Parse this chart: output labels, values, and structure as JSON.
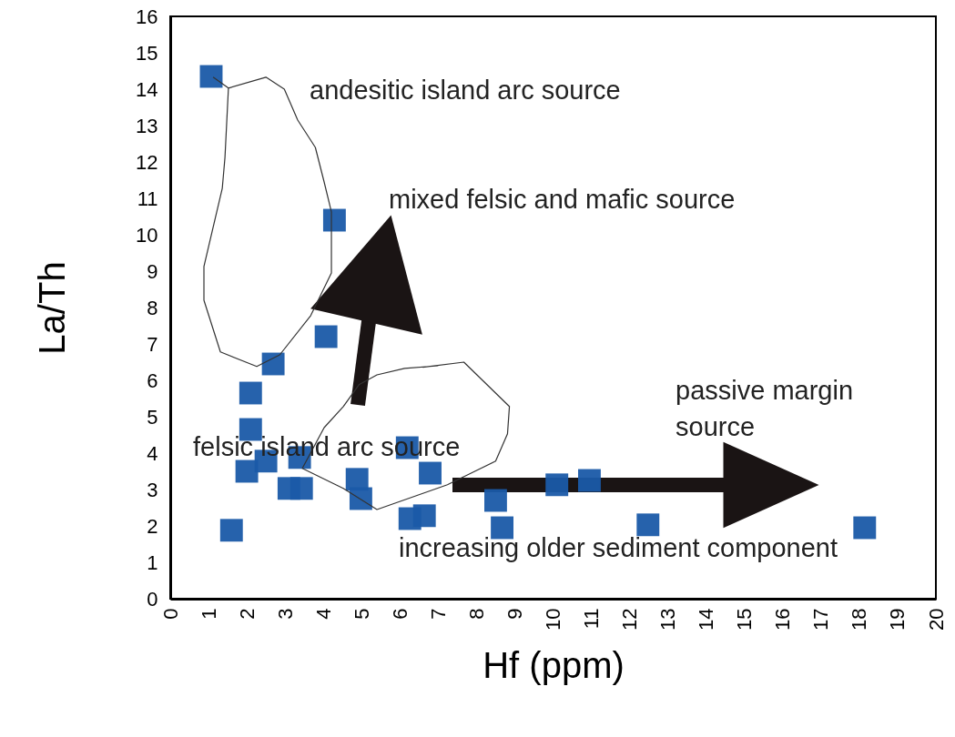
{
  "chart_data": {
    "type": "scatter",
    "xlabel": "Hf (ppm)",
    "ylabel": "La/Th",
    "xlim": [
      0,
      20
    ],
    "xticks": [
      0,
      1,
      2,
      3,
      4,
      5,
      6,
      7,
      8,
      9,
      10,
      11,
      12,
      13,
      14,
      15,
      16,
      17,
      18,
      19,
      20
    ],
    "ylim": [
      0,
      16
    ],
    "yticks": [
      0,
      1,
      2,
      3,
      4,
      5,
      6,
      7,
      8,
      9,
      10,
      11,
      12,
      13,
      14,
      15,
      16
    ],
    "grid": false,
    "series": [
      {
        "marker": "square",
        "color": "#1a5aa8",
        "x": [
          1.07,
          4.29,
          4.07,
          2.69,
          2.1,
          2.1,
          2.0,
          2.5,
          3.38,
          3.1,
          3.43,
          4.88,
          4.98,
          6.19,
          6.79,
          6.26,
          6.64,
          8.5,
          8.67,
          1.6,
          10.1,
          10.95,
          12.48,
          18.14
        ],
        "values": [
          14.35,
          10.4,
          7.2,
          6.45,
          5.65,
          4.65,
          3.5,
          3.78,
          3.88,
          3.03,
          3.03,
          3.28,
          2.75,
          4.15,
          3.45,
          2.2,
          2.28,
          2.7,
          1.95,
          1.88,
          3.13,
          3.25,
          2.03,
          1.95
        ]
      },
      {
        "type": "line",
        "color": "#333333",
        "x": [
          1.12,
          1.52,
          2.5,
          2.98,
          3.33,
          3.79,
          4.02,
          4.21,
          4.21,
          3.67,
          2.86,
          2.26,
          1.31,
          0.88,
          0.88,
          1.36,
          1.43,
          1.52
        ],
        "values": [
          14.33,
          14.03,
          14.33,
          14.0,
          13.15,
          12.4,
          11.45,
          10.63,
          8.95,
          7.78,
          6.7,
          6.38,
          6.78,
          8.2,
          9.13,
          11.28,
          12.13,
          14.03
        ]
      },
      {
        "type": "line",
        "color": "#333333",
        "x": [
          6.6,
          7.67,
          8.86,
          8.81,
          8.5,
          7.24,
          5.4,
          4.52,
          3.45,
          4.02,
          4.52,
          4.93,
          5.4,
          6.12,
          7.0
        ],
        "values": [
          6.36,
          6.5,
          5.28,
          4.53,
          3.78,
          3.13,
          2.45,
          3.03,
          3.58,
          4.7,
          5.28,
          5.88,
          6.15,
          6.33,
          6.4
        ]
      }
    ],
    "annotations": [
      "andesitic island arc source",
      "mixed felsic and mafic source",
      "passive margin\nsource",
      "felsic island arc source",
      "increasing older sediment component"
    ]
  }
}
